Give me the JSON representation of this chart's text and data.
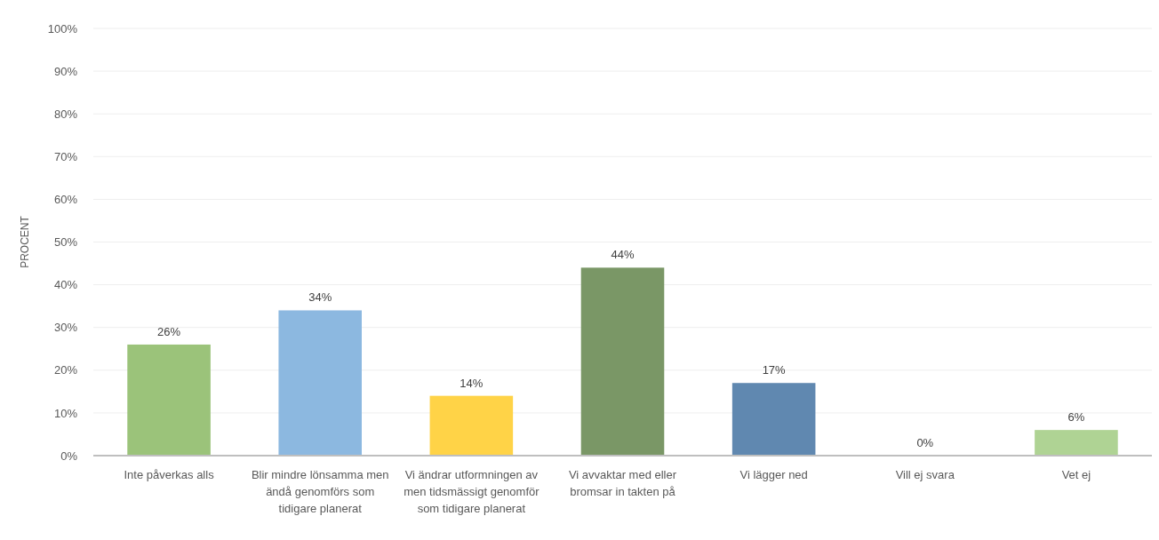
{
  "chart_data": {
    "type": "bar",
    "ylabel": "PROCENT",
    "categories": [
      "Inte påverkas alls",
      "Blir mindre lönsamma men ändå genomförs som tidigare planerat",
      "Vi ändrar utformningen av men tidsmässigt genomför som tidigare planerat",
      "Vi avvaktar med eller bromsar in takten på",
      "Vi lägger ned",
      "Vill ej svara",
      "Vet ej"
    ],
    "values": [
      26,
      34,
      14,
      44,
      17,
      0,
      6
    ],
    "colors": [
      "#9bc37a",
      "#8cb8e0",
      "#ffd347",
      "#7a9766",
      "#6088b0",
      "#e0b070",
      "#afd394"
    ],
    "value_labels": [
      "26%",
      "34%",
      "14%",
      "44%",
      "17%",
      "0%",
      "6%"
    ],
    "ylim": [
      0,
      100
    ],
    "yticks": [
      {
        "value": 0,
        "label": "0%"
      },
      {
        "value": 10,
        "label": "10%"
      },
      {
        "value": 20,
        "label": "20%"
      },
      {
        "value": 30,
        "label": "30%"
      },
      {
        "value": 40,
        "label": "40%"
      },
      {
        "value": 50,
        "label": "50%"
      },
      {
        "value": 60,
        "label": "60%"
      },
      {
        "value": 70,
        "label": "70%"
      },
      {
        "value": 80,
        "label": "80%"
      },
      {
        "value": 90,
        "label": "90%"
      },
      {
        "value": 100,
        "label": "100%"
      }
    ],
    "grid": "y"
  }
}
